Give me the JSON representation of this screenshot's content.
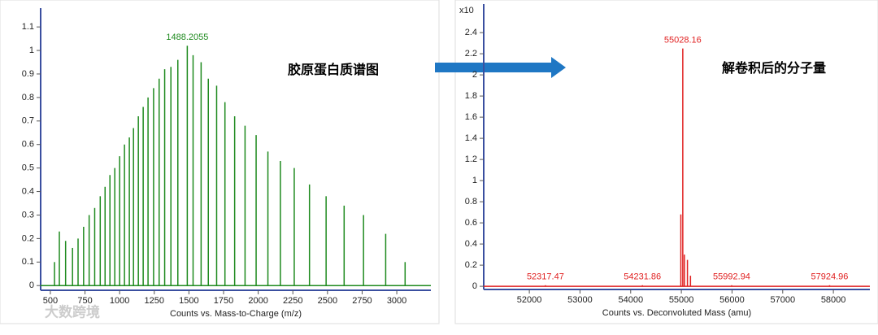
{
  "chart_data": [
    {
      "type": "stem",
      "x_label": "Counts vs. Mass-to-Charge (m/z)",
      "color": "#1e8a1e",
      "xlim": [
        430,
        3246
      ],
      "ylim": [
        -0.02,
        1.18
      ],
      "xticks": [
        500,
        750,
        1000,
        1250,
        1500,
        1750,
        2000,
        2250,
        2500,
        2750,
        3000
      ],
      "yticks": [
        0,
        0.1,
        0.2,
        0.3,
        0.4,
        0.5,
        0.6,
        0.7,
        0.8,
        0.9,
        1,
        1.1
      ],
      "x": [
        530,
        565,
        610,
        660,
        700,
        740,
        780,
        820,
        860,
        895,
        930,
        965,
        1000,
        1035,
        1070,
        1100,
        1135,
        1170,
        1205,
        1245,
        1285,
        1325,
        1370,
        1420,
        1488.2055,
        1530,
        1588,
        1640,
        1700,
        1760,
        1830,
        1905,
        1985,
        2070,
        2160,
        2260,
        2370,
        2490,
        2620,
        2760,
        2920,
        3060
      ],
      "values": [
        0.1,
        0.23,
        0.19,
        0.16,
        0.2,
        0.25,
        0.3,
        0.33,
        0.38,
        0.42,
        0.47,
        0.5,
        0.55,
        0.6,
        0.63,
        0.67,
        0.72,
        0.76,
        0.8,
        0.84,
        0.88,
        0.92,
        0.93,
        0.96,
        1.02,
        0.98,
        0.95,
        0.88,
        0.85,
        0.78,
        0.72,
        0.68,
        0.64,
        0.57,
        0.53,
        0.5,
        0.43,
        0.38,
        0.34,
        0.3,
        0.22,
        0.1
      ],
      "annotations": [
        {
          "text": "1488.2055",
          "x": 1488.2055,
          "y": 1.02
        }
      ]
    },
    {
      "type": "stem",
      "x_label": "Counts vs. Deconvoluted Mass (amu)",
      "y_multiplier": "x10",
      "color": "#e02020",
      "xlim": [
        51100,
        58720
      ],
      "ylim": [
        -0.03,
        2.67
      ],
      "xticks": [
        52000,
        53000,
        54000,
        55000,
        56000,
        57000,
        58000
      ],
      "yticks": [
        0,
        0.2,
        0.4,
        0.6,
        0.8,
        1,
        1.2,
        1.4,
        1.6,
        1.8,
        2,
        2.2,
        2.4
      ],
      "x": [
        52317.47,
        54231.86,
        54990,
        55028.16,
        55060,
        55120,
        55180,
        55992.94,
        57924.96
      ],
      "values": [
        0.01,
        0.01,
        0.68,
        2.25,
        0.3,
        0.25,
        0.1,
        0.01,
        0.01
      ],
      "annotations": [
        {
          "text": "55028.16",
          "x": 55028.16,
          "y": 2.25
        },
        {
          "text": "52317.47",
          "x": 52317.47,
          "y": 0.01
        },
        {
          "text": "54231.86",
          "x": 54231.86,
          "y": 0.01
        },
        {
          "text": "55992.94",
          "x": 55992.94,
          "y": 0.01
        },
        {
          "text": "57924.96",
          "x": 57924.96,
          "y": 0.01
        }
      ]
    }
  ],
  "captions": [
    "胶原蛋白质谱图",
    "解卷积后的分子量"
  ],
  "watermark": "大数跨境"
}
